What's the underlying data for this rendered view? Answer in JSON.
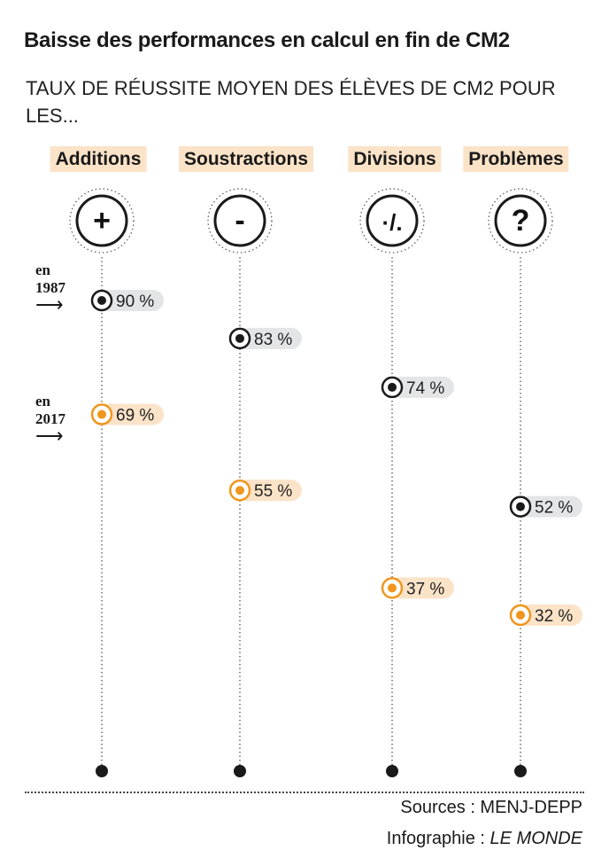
{
  "chart_data": {
    "type": "scatter",
    "title": "Baisse des performances en calcul en fin de CM2",
    "subtitle": "TAUX DE RÉUSSITE MOYEN DES ÉLÈVES DE CM2 POUR LES...",
    "categories": [
      "Additions",
      "Soustractions",
      "Divisions",
      "Problèmes"
    ],
    "symbols": [
      "+",
      "-",
      "·/.",
      "?"
    ],
    "series": [
      {
        "name": "en 1987",
        "values": [
          90,
          83,
          74,
          52
        ],
        "labels": [
          "90 %",
          "83 %",
          "74 %",
          "52 %"
        ],
        "color": "#1a1a1a",
        "label_bg": "#e3e5e6"
      },
      {
        "name": "en 2017",
        "values": [
          69,
          55,
          37,
          32
        ],
        "labels": [
          "69 %",
          "55 %",
          "37 %",
          "32 %"
        ],
        "color": "#f0961e",
        "label_bg": "#fbe3c8"
      }
    ],
    "ylim": [
      0,
      100
    ],
    "grid": false
  },
  "legend": {
    "y1987": {
      "en": "en",
      "year": "1987"
    },
    "y2017": {
      "en": "en",
      "year": "2017"
    }
  },
  "footer": {
    "source": "Sources : MENJ-DEPP",
    "credit_prefix": "Infographie : ",
    "credit_name": "LE MONDE"
  },
  "colors": {
    "accent": "#f0961e",
    "ink": "#1a1a1a",
    "label_bg": "#fbe3c8"
  }
}
